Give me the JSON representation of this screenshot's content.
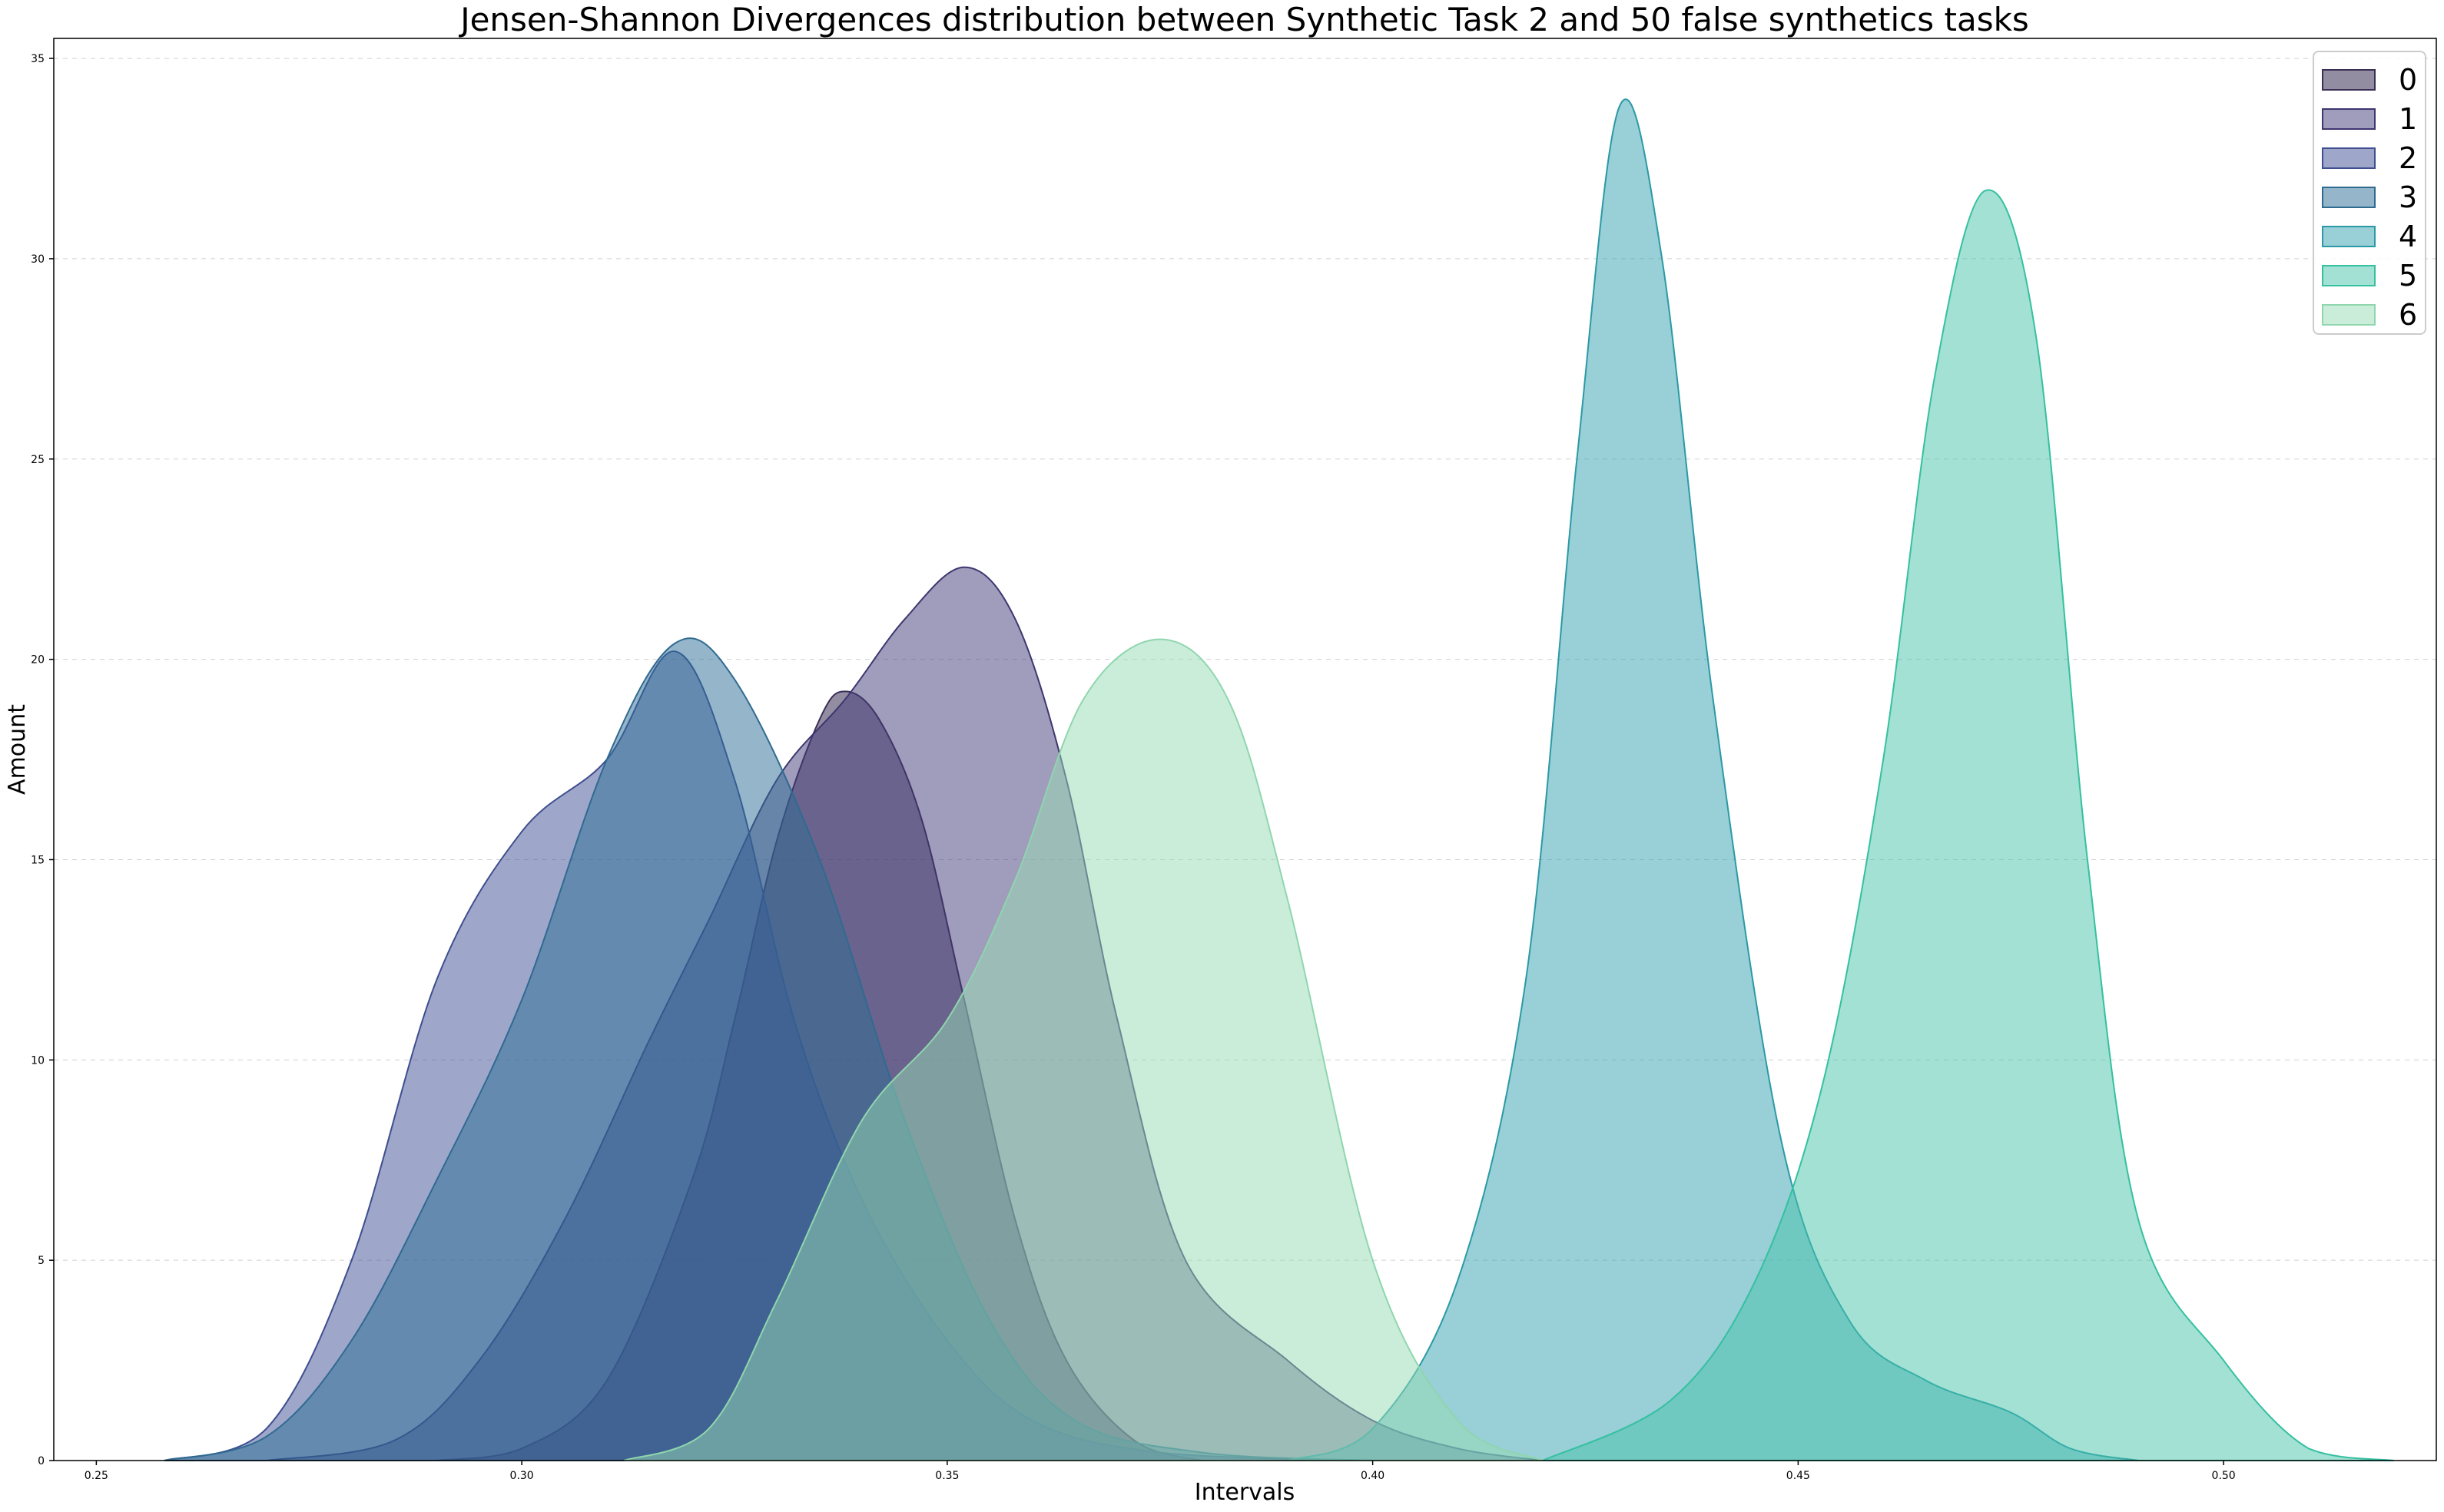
{
  "chart_data": {
    "type": "area",
    "title": "Jensen-Shannon Divergences distribution between Synthetic Task 2 and 50 false synthetics tasks",
    "xlabel": "Intervals",
    "ylabel": "Amount",
    "xlim": [
      0.245,
      0.525
    ],
    "ylim": [
      0,
      35.5
    ],
    "xticks": [
      "0.25",
      "0.30",
      "0.35",
      "0.40",
      "0.45",
      "0.50"
    ],
    "yticks": [
      "0",
      "5",
      "10",
      "15",
      "20",
      "25",
      "30",
      "35"
    ],
    "grid": "horizontal dashed",
    "legend_position": "top-right",
    "series": [
      {
        "name": "0",
        "color": "#3b2f56",
        "fill": "rgba(59,47,86,0.55)",
        "x": [
          0.29,
          0.3,
          0.31,
          0.32,
          0.325,
          0.33,
          0.335,
          0.338,
          0.342,
          0.347,
          0.352,
          0.358,
          0.364,
          0.372,
          0.38
        ],
        "y": [
          0,
          0.3,
          2,
          7,
          11,
          15.5,
          18.5,
          19.2,
          18.5,
          16,
          11.5,
          6,
          2.5,
          0.5,
          0
        ]
      },
      {
        "name": "1",
        "color": "#3d3670",
        "fill": "rgba(66,58,120,0.50)",
        "x": [
          0.27,
          0.285,
          0.295,
          0.305,
          0.315,
          0.322,
          0.33,
          0.338,
          0.345,
          0.352,
          0.358,
          0.364,
          0.37,
          0.378,
          0.39,
          0.4,
          0.41,
          0.42
        ],
        "y": [
          0,
          0.5,
          2.5,
          6,
          10.5,
          13.5,
          17,
          19,
          21,
          22.3,
          21,
          17,
          11,
          5,
          2.5,
          1,
          0.3,
          0
        ]
      },
      {
        "name": "2",
        "color": "#3e4e8f",
        "fill": "rgba(62,78,150,0.50)",
        "x": [
          0.258,
          0.27,
          0.28,
          0.29,
          0.3,
          0.31,
          0.318,
          0.325,
          0.332,
          0.34,
          0.35,
          0.36,
          0.375,
          0.4
        ],
        "y": [
          0,
          0.8,
          5,
          12,
          15.7,
          17.5,
          20.2,
          17,
          11,
          6.5,
          3,
          1,
          0.2,
          0
        ]
      },
      {
        "name": "3",
        "color": "#2f6a91",
        "fill": "rgba(43,110,150,0.50)",
        "x": [
          0.258,
          0.27,
          0.28,
          0.29,
          0.3,
          0.31,
          0.318,
          0.325,
          0.335,
          0.345,
          0.355,
          0.365,
          0.38,
          0.4
        ],
        "y": [
          0,
          0.6,
          3,
          7,
          11.5,
          17.5,
          20.4,
          19.5,
          15,
          8.5,
          3.5,
          1,
          0.2,
          0
        ]
      },
      {
        "name": "4",
        "color": "#2a9aa5",
        "fill": "rgba(52,160,175,0.50)",
        "x": [
          0.39,
          0.4,
          0.41,
          0.418,
          0.424,
          0.429,
          0.434,
          0.44,
          0.448,
          0.456,
          0.465,
          0.475,
          0.482,
          0.49
        ],
        "y": [
          0,
          0.8,
          4.5,
          12,
          25,
          33.8,
          30,
          19,
          8,
          3.5,
          2,
          1.2,
          0.3,
          0
        ]
      },
      {
        "name": "5",
        "color": "#35c0a0",
        "fill": "rgba(70,195,170,0.50)",
        "x": [
          0.42,
          0.435,
          0.445,
          0.453,
          0.46,
          0.466,
          0.472,
          0.478,
          0.484,
          0.49,
          0.5,
          0.51,
          0.52
        ],
        "y": [
          0,
          1.5,
          4.5,
          9.5,
          17.5,
          27,
          31.7,
          28,
          15,
          6,
          2.5,
          0.3,
          0
        ]
      },
      {
        "name": "6",
        "color": "#8fd6ae",
        "fill": "rgba(150,220,180,0.50)",
        "x": [
          0.312,
          0.322,
          0.33,
          0.34,
          0.35,
          0.358,
          0.366,
          0.375,
          0.383,
          0.39,
          0.4,
          0.41,
          0.42
        ],
        "y": [
          0,
          0.8,
          4,
          8.5,
          11,
          14.5,
          19,
          20.5,
          19,
          14,
          5,
          1,
          0
        ]
      }
    ]
  }
}
